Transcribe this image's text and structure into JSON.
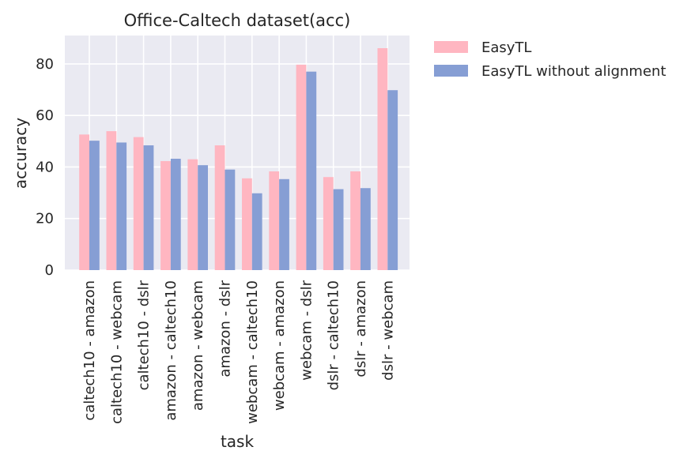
{
  "chart_data": {
    "type": "bar",
    "title": "Office-Caltech dataset(acc)",
    "xlabel": "task",
    "ylabel": "accuracy",
    "ylim": [
      0,
      91
    ],
    "yticks": [
      0,
      20,
      40,
      60,
      80
    ],
    "grid": true,
    "legend_position": "outside-right",
    "categories": [
      "caltech10 - amazon",
      "caltech10 - webcam",
      "caltech10 - dslr",
      "amazon - caltech10",
      "amazon - webcam",
      "amazon - dslr",
      "webcam - caltech10",
      "webcam - amazon",
      "webcam - dslr",
      "dslr - caltech10",
      "dslr - amazon",
      "dslr - webcam"
    ],
    "series": [
      {
        "name": "EasyTL",
        "color": "#ffb6c1",
        "values": [
          52.6,
          53.9,
          51.6,
          42.3,
          43.0,
          48.4,
          35.6,
          38.3,
          79.7,
          36.1,
          38.3,
          86.1
        ]
      },
      {
        "name": "EasyTL without alignment",
        "color": "#869ed4",
        "values": [
          50.2,
          49.5,
          48.4,
          43.2,
          40.7,
          39.0,
          29.8,
          35.3,
          77.0,
          31.4,
          31.8,
          69.8
        ]
      }
    ],
    "plot_background": "#eaeaf2",
    "grid_color": "#ffffff"
  }
}
